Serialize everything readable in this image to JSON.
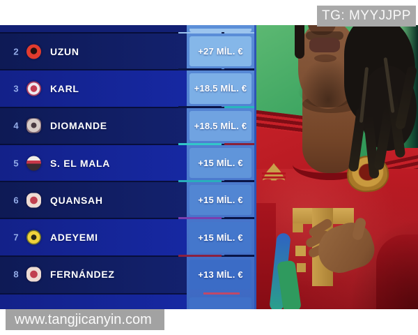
{
  "header": {
    "telegram_badge": "TG: MYYJJPP"
  },
  "footer": {
    "website_badge": "www.tangjicanyin.com"
  },
  "chart_data": {
    "type": "table",
    "title": "",
    "columns": [
      "rank",
      "player",
      "club",
      "market_value_increase"
    ],
    "rows": [
      {
        "rank": "2",
        "player": "UZUN",
        "club": "eintracht-frankfurt",
        "value": "+27 MİL. €"
      },
      {
        "rank": "3",
        "player": "KARL",
        "club": "bayern-munich",
        "value": "+18.5 MİL. €"
      },
      {
        "rank": "4",
        "player": "DIOMANDE",
        "club": "rb-leipzig",
        "value": "+18.5 MİL. €"
      },
      {
        "rank": "5",
        "player": "S. EL MALA",
        "club": "fc-koln",
        "value": "+15 MİL. €"
      },
      {
        "rank": "6",
        "player": "QUANSAH",
        "club": "bayer-leverkusen",
        "value": "+15 MİL. €"
      },
      {
        "rank": "7",
        "player": "ADEYEMI",
        "club": "borussia-dortmund",
        "value": "+15 MİL. €"
      },
      {
        "rank": "8",
        "player": "FERNÁNDEZ",
        "club": "bayer-leverkusen",
        "value": "+13 MİL. €"
      }
    ]
  },
  "colors": {
    "row_dark": "#101d60",
    "row_bright": "#15259d",
    "value_strip": "#4a7ccc",
    "value_box_colors": [
      "#85b7e9",
      "#7cafe6",
      "#70a3e1",
      "#6095da",
      "#5286d3",
      "#4477cc",
      "#3b6cc6"
    ],
    "watermark_gray": "#a9a9a9",
    "jersey_red": "#c01c26",
    "background_green": "#2f9a58",
    "gold": "#c9a24a"
  }
}
